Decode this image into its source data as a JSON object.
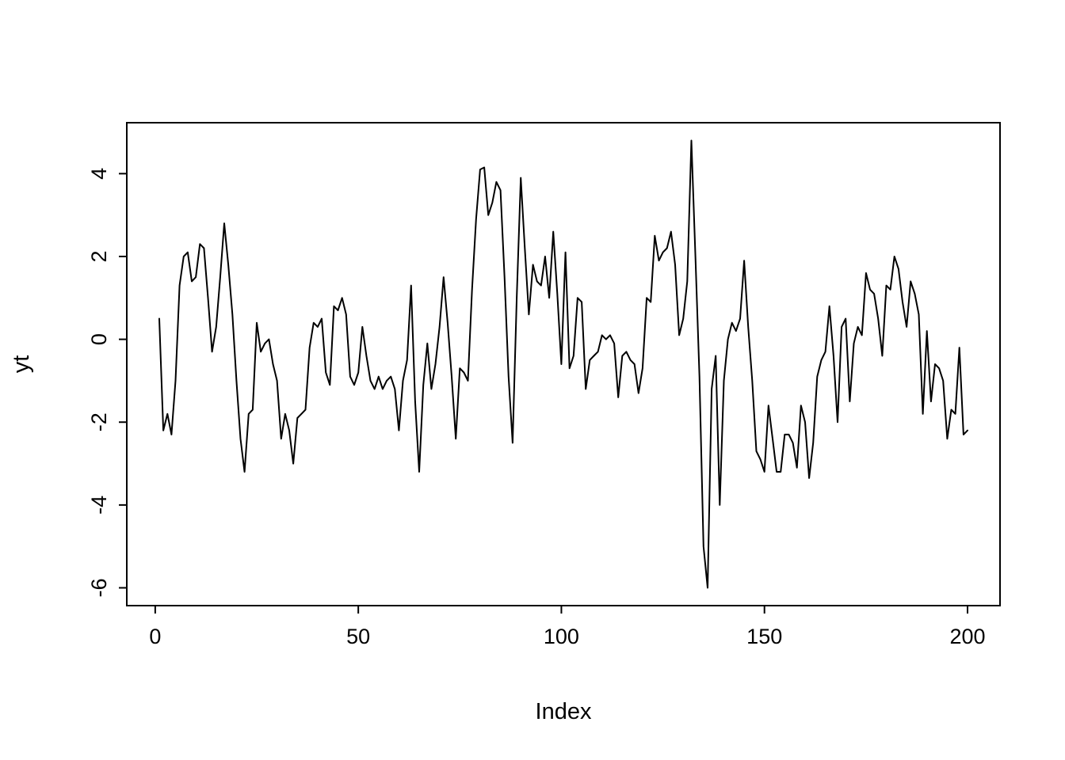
{
  "chart_data": {
    "type": "line",
    "title": "",
    "xlabel": "Index",
    "ylabel": "yt",
    "x_ticks": [
      0,
      50,
      100,
      150,
      200
    ],
    "y_ticks": [
      -6,
      -4,
      -2,
      0,
      2,
      4
    ],
    "xlim": [
      -7,
      208
    ],
    "ylim": [
      -6.43,
      5.23
    ],
    "x_start": 1,
    "x_end": 200,
    "grid": "off",
    "legend": "none",
    "line_color": "#000000",
    "background_color": "#ffffff",
    "y": [
      0.5,
      -2.2,
      -1.8,
      -2.3,
      -1.0,
      1.3,
      2.0,
      2.1,
      1.4,
      1.5,
      2.3,
      2.2,
      1.0,
      -0.3,
      0.3,
      1.5,
      2.8,
      1.8,
      0.6,
      -1.0,
      -2.4,
      -3.2,
      -1.8,
      -1.7,
      0.4,
      -0.3,
      -0.1,
      0.0,
      -0.6,
      -1.0,
      -2.4,
      -1.8,
      -2.2,
      -3.0,
      -1.9,
      -1.8,
      -1.7,
      -0.2,
      0.4,
      0.3,
      0.5,
      -0.8,
      -1.1,
      0.8,
      0.7,
      1.0,
      0.6,
      -0.9,
      -1.1,
      -0.8,
      0.3,
      -0.4,
      -1.0,
      -1.2,
      -0.9,
      -1.2,
      -1.0,
      -0.9,
      -1.2,
      -2.2,
      -1.0,
      -0.5,
      1.3,
      -1.5,
      -3.2,
      -1.1,
      -0.1,
      -1.2,
      -0.6,
      0.3,
      1.5,
      0.4,
      -0.9,
      -2.4,
      -0.7,
      -0.8,
      -1.0,
      1.2,
      2.9,
      4.1,
      4.15,
      3.0,
      3.3,
      3.8,
      3.6,
      1.5,
      -0.9,
      -2.5,
      1.0,
      3.9,
      2.2,
      0.6,
      1.8,
      1.4,
      1.3,
      2.0,
      1.0,
      2.6,
      1.1,
      -0.6,
      2.1,
      -0.7,
      -0.4,
      1.0,
      0.9,
      -1.2,
      -0.5,
      -0.4,
      -0.3,
      0.1,
      0.0,
      0.1,
      -0.1,
      -1.4,
      -0.4,
      -0.3,
      -0.5,
      -0.6,
      -1.3,
      -0.7,
      1.0,
      0.9,
      2.5,
      1.9,
      2.1,
      2.2,
      2.6,
      1.8,
      0.1,
      0.5,
      1.4,
      4.8,
      2.0,
      -0.9,
      -5.0,
      -6.0,
      -1.2,
      -0.4,
      -4.0,
      -1.0,
      0.0,
      0.4,
      0.2,
      0.5,
      1.9,
      0.3,
      -1.0,
      -2.7,
      -2.9,
      -3.2,
      -1.6,
      -2.4,
      -3.2,
      -3.2,
      -2.3,
      -2.3,
      -2.5,
      -3.1,
      -1.6,
      -2.0,
      -3.35,
      -2.5,
      -0.9,
      -0.5,
      -0.3,
      0.8,
      -0.4,
      -2.0,
      0.3,
      0.5,
      -1.5,
      -0.1,
      0.3,
      0.1,
      1.6,
      1.2,
      1.1,
      0.5,
      -0.4,
      1.3,
      1.2,
      2.0,
      1.7,
      0.9,
      0.3,
      1.4,
      1.1,
      0.6,
      -1.8,
      0.2,
      -1.5,
      -0.6,
      -0.7,
      -1.0,
      -2.4,
      -1.7,
      -1.8,
      -0.2,
      -2.3,
      -2.2
    ]
  }
}
